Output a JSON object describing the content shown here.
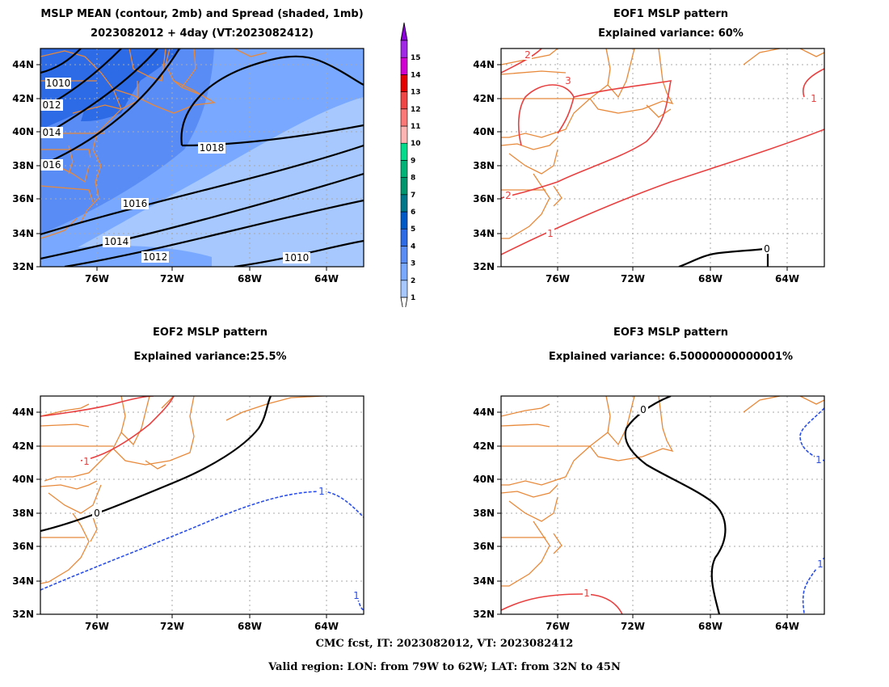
{
  "panels": {
    "mean": {
      "title1": "MSLP MEAN (contour, 2mb) and Spread (shaded, 1mb)",
      "title2": "2023082012 + 4day (VT:2023082412)"
    },
    "eof1": {
      "title1": "EOF1 MSLP pattern",
      "title2": "Explained variance: 60%"
    },
    "eof2": {
      "title1": "EOF2 MSLP pattern",
      "title2": "Explained variance:25.5%"
    },
    "eof3": {
      "title1": "EOF3 MSLP pattern",
      "title2": "Explained variance: 6.50000000000001%"
    }
  },
  "axes": {
    "lat_labels": [
      "44N",
      "42N",
      "40N",
      "38N",
      "36N",
      "34N",
      "32N"
    ],
    "lon_labels": [
      "76W",
      "72W",
      "68W",
      "64W"
    ]
  },
  "colorbar": {
    "labels": [
      "1",
      "2",
      "3",
      "4",
      "5",
      "6",
      "7",
      "8",
      "9",
      "10",
      "11",
      "12",
      "13",
      "14",
      "15"
    ],
    "colors": [
      "#a6c8ff",
      "#78a8ff",
      "#5a8cf5",
      "#2c6ae6",
      "#005ac8",
      "#00788c",
      "#00966e",
      "#00b478",
      "#00dc8c",
      "#ffb4b4",
      "#ff7878",
      "#f04646",
      "#e60000",
      "#d200d2",
      "#8c00dc"
    ]
  },
  "contour_labels": {
    "mean": [
      "1010",
      "012",
      "014",
      "016",
      "1018",
      "1016",
      "1014",
      "1012",
      "1010"
    ],
    "eof1": [
      "2",
      "3",
      "2",
      "1",
      "1",
      "0"
    ],
    "eof2": [
      "1",
      "0",
      "1",
      "1"
    ],
    "eof3": [
      "0",
      "1",
      "1",
      "1"
    ]
  },
  "footer": {
    "line1": "CMC fcst, IT: 2023082012, VT: 2023082412",
    "line2": "Valid region: LON: from 79W to 62W; LAT: from 32N to 45N"
  }
}
